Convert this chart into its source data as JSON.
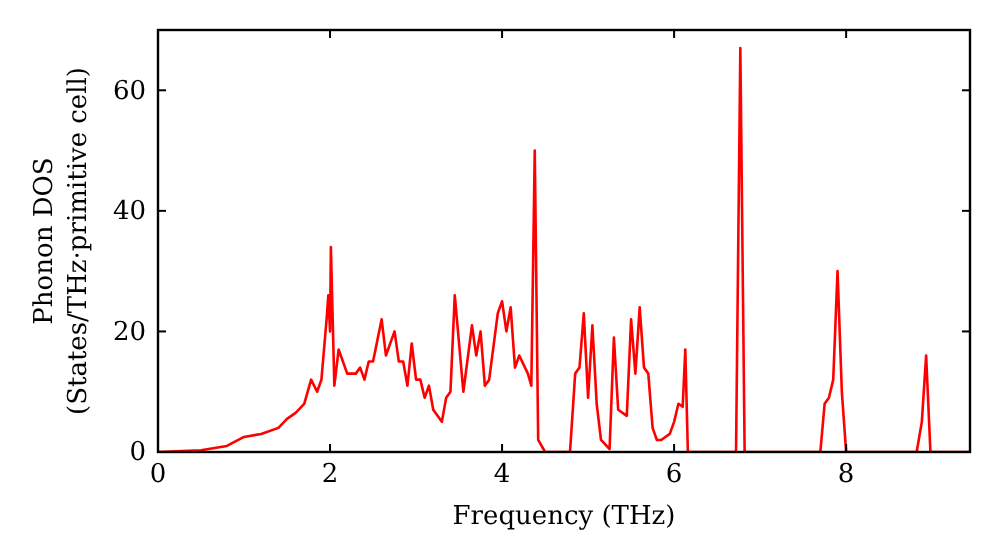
{
  "chart_data": {
    "type": "line",
    "xlabel": "Frequency (THz)",
    "ylabel": "Phonon DOS\n(States/THz·primitive cell)",
    "x": [
      0,
      0.5,
      0.8,
      1.0,
      1.2,
      1.4,
      1.5,
      1.6,
      1.7,
      1.78,
      1.85,
      1.9,
      1.96,
      1.98,
      2.0,
      2.01,
      2.05,
      2.1,
      2.2,
      2.3,
      2.35,
      2.4,
      2.45,
      2.5,
      2.6,
      2.65,
      2.75,
      2.8,
      2.85,
      2.9,
      2.95,
      3.0,
      3.05,
      3.1,
      3.15,
      3.2,
      3.3,
      3.35,
      3.4,
      3.45,
      3.55,
      3.65,
      3.7,
      3.75,
      3.8,
      3.85,
      3.95,
      4.0,
      4.05,
      4.1,
      4.15,
      4.2,
      4.3,
      4.34,
      4.38,
      4.42,
      4.5,
      4.79,
      4.85,
      4.9,
      4.95,
      5.0,
      5.05,
      5.1,
      5.15,
      5.25,
      5.3,
      5.35,
      5.45,
      5.5,
      5.55,
      5.6,
      5.65,
      5.7,
      5.75,
      5.8,
      5.85,
      5.95,
      6.0,
      6.05,
      6.1,
      6.13,
      6.16,
      6.72,
      6.77,
      6.82,
      7.7,
      7.75,
      7.8,
      7.85,
      7.9,
      7.95,
      8.0,
      8.82,
      8.88,
      8.93,
      8.98,
      9.44
    ],
    "series": [
      {
        "color": "#ff0000",
        "values": [
          0,
          0.3,
          1,
          2.5,
          3,
          4,
          5.5,
          6.5,
          8,
          12,
          10,
          12,
          22,
          26,
          20,
          34,
          11,
          17,
          13,
          13,
          14,
          12,
          15,
          15,
          22,
          16,
          20,
          15,
          15,
          11,
          18,
          12,
          12,
          9,
          11,
          7,
          5,
          9,
          10,
          26,
          10,
          21,
          16,
          20,
          11,
          12,
          23,
          25,
          20,
          24,
          14,
          16,
          13,
          11,
          50,
          2,
          0,
          0,
          13,
          14,
          23,
          9,
          21,
          8,
          2,
          0.5,
          19,
          7,
          6,
          22,
          13,
          24,
          14,
          13,
          4,
          2,
          2,
          3,
          5,
          8,
          7.5,
          17,
          0,
          0,
          67,
          0,
          0,
          8,
          9,
          12,
          30,
          10,
          0,
          0,
          5,
          16,
          0,
          0
        ]
      }
    ],
    "xlim": [
      0,
      9.44
    ],
    "ylim": [
      0,
      70
    ],
    "xticks": [
      0,
      2,
      4,
      6,
      8
    ],
    "yticks": [
      0,
      20,
      40,
      60
    ],
    "grid": false,
    "line_style": "solid",
    "marker": "none"
  }
}
